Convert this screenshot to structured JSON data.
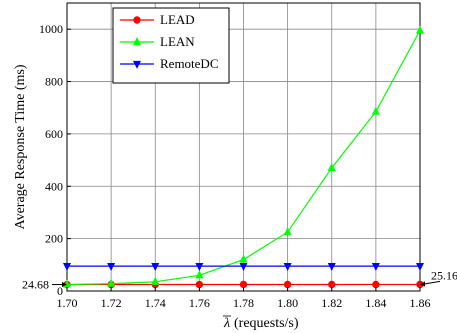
{
  "chart_data": {
    "type": "line",
    "title": "",
    "xlabel": "(requests/s)",
    "xlabel_symbol": "λ",
    "ylabel": "Average Response Time (ms)",
    "x": [
      1.7,
      1.72,
      1.74,
      1.76,
      1.78,
      1.8,
      1.82,
      1.84,
      1.86
    ],
    "x_ticks": [
      "1.70",
      "1.72",
      "1.74",
      "1.76",
      "1.78",
      "1.80",
      "1.82",
      "1.84",
      "1.86"
    ],
    "xlim": [
      1.7,
      1.86
    ],
    "y_ticks": [
      "0",
      "200",
      "400",
      "600",
      "800",
      "1000"
    ],
    "y_tick_values": [
      0,
      200,
      400,
      600,
      800,
      1000
    ],
    "ylim": [
      0,
      1100
    ],
    "grid": true,
    "legend_position": "top-left",
    "series": [
      {
        "name": "LEAD",
        "color": "#ff0000",
        "marker": "circle",
        "values": [
          24.68,
          24.7,
          24.72,
          24.75,
          24.8,
          24.85,
          24.9,
          25.0,
          25.16
        ]
      },
      {
        "name": "LEAN",
        "color": "#00ff00",
        "marker": "triangle-up",
        "values": [
          25,
          28,
          35,
          60,
          120,
          225,
          470,
          685,
          995
        ]
      },
      {
        "name": "RemoteDC",
        "color": "#0000ff",
        "marker": "triangle-down",
        "values": [
          95,
          95,
          95,
          95,
          95,
          95,
          95,
          95,
          95
        ]
      }
    ],
    "annotations": [
      {
        "text": "24.68",
        "side": "left"
      },
      {
        "text": "25.16",
        "side": "right"
      }
    ]
  }
}
